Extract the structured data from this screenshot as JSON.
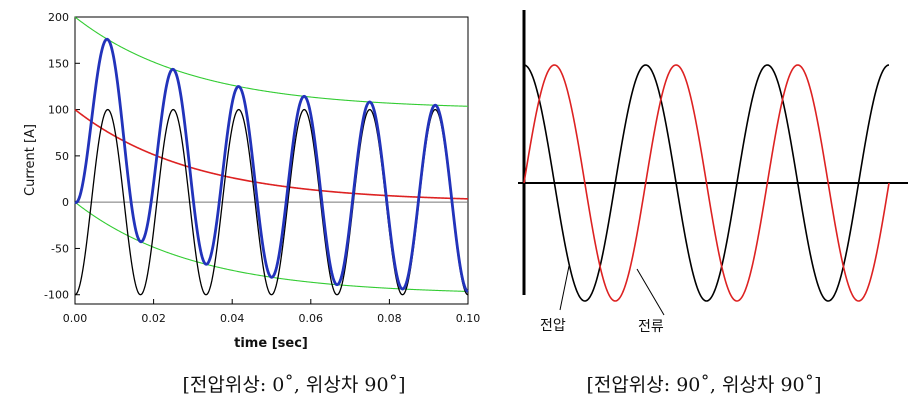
{
  "chart_data": [
    {
      "type": "line",
      "xlabel": "time [sec]",
      "ylabel": "Current [A]",
      "xlim": [
        0.0,
        0.1
      ],
      "ylim": [
        -110,
        200
      ],
      "x_ticks": [
        "0.00",
        "0.02",
        "0.04",
        "0.06",
        "0.08",
        "0.10"
      ],
      "x_tick_values": [
        0.0,
        0.02,
        0.04,
        0.06,
        0.08,
        0.1
      ],
      "y_ticks": [
        "200",
        "150",
        "100",
        "50",
        "0",
        "-50",
        "-100"
      ],
      "y_tick_values": [
        200,
        150,
        100,
        50,
        0,
        -50,
        -100
      ],
      "series": [
        {
          "color": "#000000",
          "kind": "sine",
          "amplitude": 100,
          "frequency_hz": 60,
          "offset_rad": -1.5708,
          "decay_tau": null
        },
        {
          "color": "#2233bb",
          "kind": "sine_plus_decay",
          "amplitude": 100,
          "frequency_hz": 60,
          "offset_rad": -1.5708,
          "dc": 100,
          "decay_tau": 0.03
        },
        {
          "color": "#dd2222",
          "kind": "decay",
          "dc": 100,
          "decay_tau": 0.03
        },
        {
          "color": "#33cc33",
          "kind": "envelope_upper",
          "amplitude": 100,
          "dc": 100,
          "decay_tau": 0.03
        },
        {
          "color": "#33cc33",
          "kind": "envelope_lower",
          "amplitude": -100,
          "dc": 100,
          "decay_tau": 0.03
        }
      ],
      "caption": "[전압위상: 0˚, 위상차 90˚]"
    },
    {
      "type": "line",
      "cycles": 3,
      "series": [
        {
          "name": "전압",
          "color": "#000000",
          "phase_deg": 90
        },
        {
          "name": "전류",
          "color": "#dd2222",
          "phase_deg": 0
        }
      ],
      "labels": [
        "전압",
        "전류"
      ],
      "caption": "[전압위상: 90˚, 위상차 90˚]"
    }
  ]
}
